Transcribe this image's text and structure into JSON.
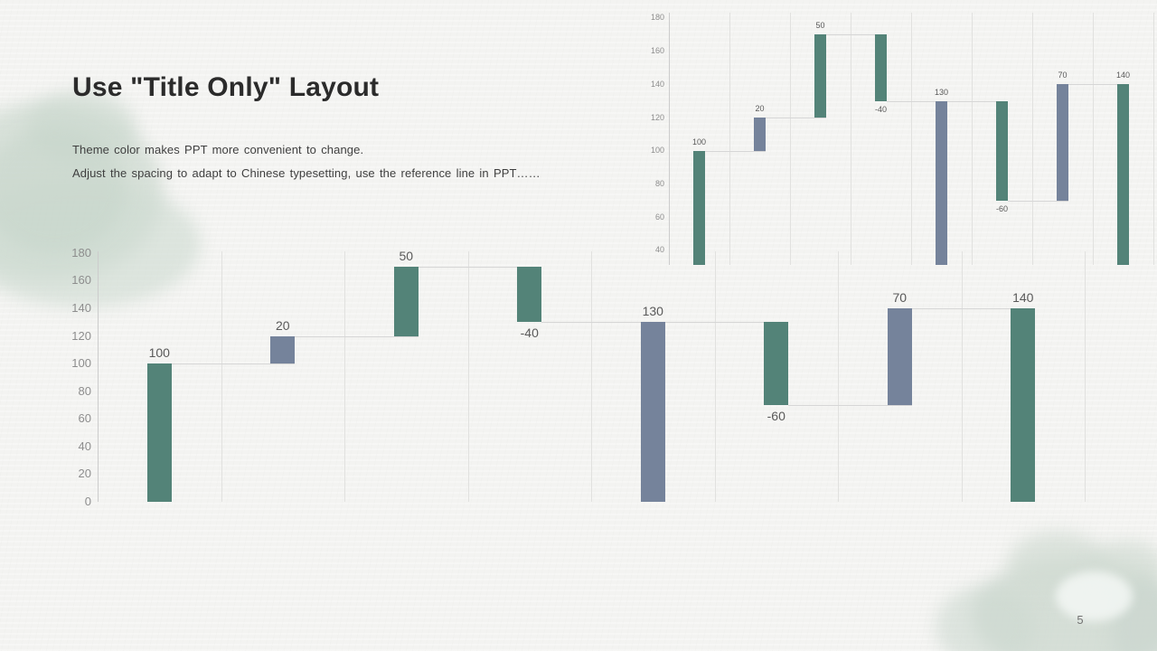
{
  "slide": {
    "title": "Use \"Title Only\" Layout",
    "body_lines": [
      "Theme color makes PPT more convenient  to change.",
      "Adjust the spacing to adapt to Chinese  typesetting, use the reference line in PPT……"
    ],
    "page_number": "5"
  },
  "colors": {
    "bar_teal": "#538378",
    "bar_slate": "#75839B",
    "connector": "#d6d6d6",
    "gridline": "#e1e1df",
    "axis_line": "#cccccc",
    "tick_text": "#8d8d8d",
    "label_text": "#595959",
    "background": "#f3f3f1",
    "watercolor": "#cdd8d0",
    "title_text": "#2b2b2b",
    "body_text": "#3f3f3f",
    "page_number_text": "#737373"
  },
  "chart_data": [
    {
      "id": "main-waterfall",
      "type": "bar",
      "subtype": "waterfall",
      "title": "",
      "xlabel": "",
      "ylabel": "",
      "legend": "none",
      "ylim": [
        0,
        180
      ],
      "yticks": [
        180,
        160,
        140,
        120,
        100,
        80,
        60,
        40,
        20,
        0
      ],
      "gridlines": "vertical-category-separators",
      "bars": [
        {
          "label": "100",
          "value": 100,
          "start": 0,
          "end": 100,
          "color_role": "teal"
        },
        {
          "label": "20",
          "value": 20,
          "start": 100,
          "end": 120,
          "color_role": "slate"
        },
        {
          "label": "50",
          "value": 50,
          "start": 120,
          "end": 170,
          "color_role": "teal"
        },
        {
          "label": "-40",
          "value": -40,
          "start": 170,
          "end": 130,
          "color_role": "teal"
        },
        {
          "label": "130",
          "value": 130,
          "start": 0,
          "end": 130,
          "color_role": "slate"
        },
        {
          "label": "-60",
          "value": -60,
          "start": 130,
          "end": 70,
          "color_role": "teal"
        },
        {
          "label": "70",
          "value": 70,
          "start": 70,
          "end": 140,
          "color_role": "slate"
        },
        {
          "label": "140",
          "value": 140,
          "start": 0,
          "end": 140,
          "color_role": "teal"
        }
      ]
    },
    {
      "id": "mini-waterfall",
      "type": "bar",
      "subtype": "waterfall",
      "title": "",
      "xlabel": "",
      "ylabel": "",
      "legend": "none",
      "ylim": [
        0,
        180
      ],
      "yticks": [
        180,
        160,
        140,
        120,
        100,
        80,
        60,
        40
      ],
      "gridlines": "vertical-category-separators",
      "note_visible_clip": "plot clipped below value ~32",
      "bars": [
        {
          "label": "100",
          "value": 100,
          "start": 0,
          "end": 100,
          "color_role": "teal"
        },
        {
          "label": "20",
          "value": 20,
          "start": 100,
          "end": 120,
          "color_role": "slate"
        },
        {
          "label": "50",
          "value": 50,
          "start": 120,
          "end": 170,
          "color_role": "teal"
        },
        {
          "label": "-40",
          "value": -40,
          "start": 170,
          "end": 130,
          "color_role": "teal"
        },
        {
          "label": "130",
          "value": 130,
          "start": 0,
          "end": 130,
          "color_role": "slate"
        },
        {
          "label": "-60",
          "value": -60,
          "start": 130,
          "end": 70,
          "color_role": "teal"
        },
        {
          "label": "70",
          "value": 70,
          "start": 70,
          "end": 140,
          "color_role": "slate"
        },
        {
          "label": "140",
          "value": 140,
          "start": 0,
          "end": 140,
          "color_role": "teal"
        }
      ]
    }
  ]
}
